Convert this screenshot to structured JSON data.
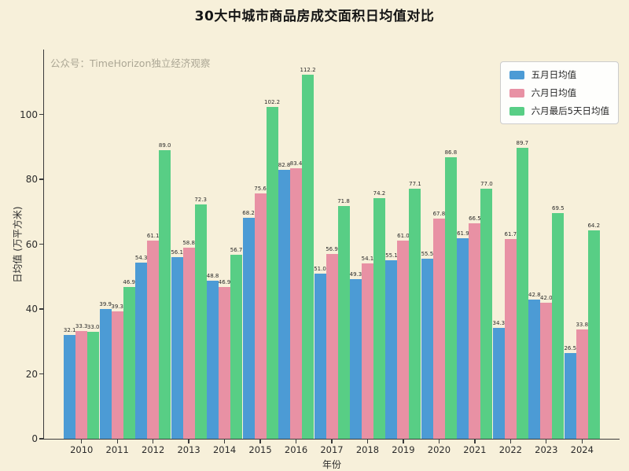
{
  "watermark": "公众号：TimeHorizon独立经济观察",
  "colors": {
    "background": "#f7f0da",
    "spine": "#3a3a3a",
    "may_blue": "#4c9bd5",
    "june_pink": "#e891a4",
    "june_last5_green": "#58ce85",
    "legend_background": "#fefefc",
    "watermark_gray": "#aca795"
  },
  "chart_data": {
    "type": "bar",
    "title": "30大中城市商品房成交面积日均值对比",
    "xlabel": "年份",
    "ylabel": "日均值 (万平方米)",
    "categories": [
      "2010",
      "2011",
      "2012",
      "2013",
      "2014",
      "2015",
      "2016",
      "2017",
      "2018",
      "2019",
      "2020",
      "2021",
      "2022",
      "2023",
      "2024"
    ],
    "series": [
      {
        "name": "五月日均值",
        "color": "#4c9bd5",
        "values": [
          32.1,
          39.9,
          54.3,
          56.1,
          48.8,
          68.2,
          82.8,
          51.0,
          49.3,
          55.1,
          55.5,
          61.9,
          34.3,
          42.8,
          26.5
        ]
      },
      {
        "name": "六月日均值",
        "color": "#e891a4",
        "values": [
          33.3,
          39.3,
          61.1,
          58.8,
          46.9,
          75.6,
          83.4,
          56.9,
          54.1,
          61.0,
          67.8,
          66.5,
          61.7,
          42.0,
          33.8
        ]
      },
      {
        "name": "六月最后5天日均值",
        "color": "#58ce85",
        "values": [
          33.0,
          46.9,
          89.0,
          72.3,
          56.7,
          102.2,
          112.2,
          71.8,
          74.2,
          77.1,
          86.8,
          77.0,
          89.7,
          69.5,
          64.2
        ]
      }
    ],
    "ylim": [
      0,
      120
    ],
    "yticks": [
      0,
      20,
      40,
      60,
      80,
      100
    ],
    "grid": false,
    "legend_position": "top-right",
    "value_labels": true
  }
}
